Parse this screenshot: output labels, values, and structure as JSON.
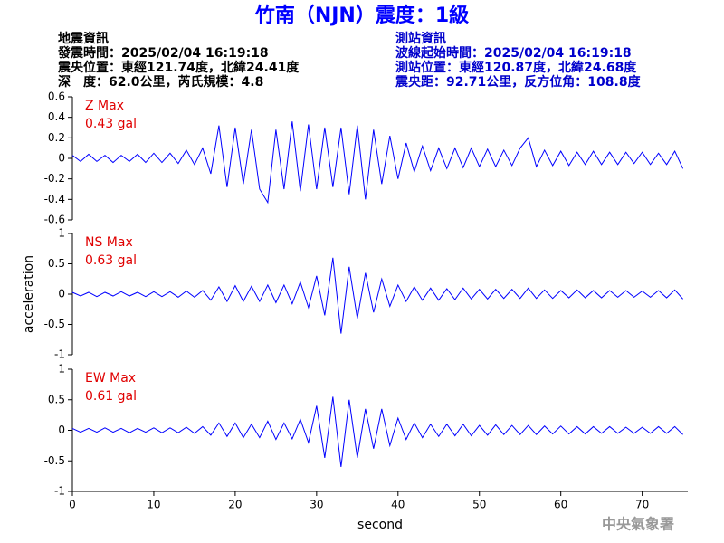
{
  "header": {
    "title": "竹南（NJN）震度：1級",
    "left": [
      "地震資訊",
      "發震時間：2025/02/04 16:19:18",
      "震央位置：東經121.74度，北緯24.41度",
      "深　度：62.0公里，芮氏規模：4.8"
    ],
    "right": [
      "測站資訊",
      "波線起始時間：2025/02/04 16:19:18",
      "測站位置：東經120.87度，北緯24.68度",
      "震央距：92.71公里，反方位角：108.8度"
    ]
  },
  "footer": "中央氣象署",
  "chart_data": [
    {
      "type": "line",
      "label": "Z Max",
      "annotation": "0.43 gal",
      "x": [
        0,
        1,
        2,
        3,
        4,
        5,
        6,
        7,
        8,
        9,
        10,
        11,
        12,
        13,
        14,
        15,
        16,
        17,
        18,
        19,
        20,
        21,
        22,
        23,
        24,
        25,
        26,
        27,
        28,
        29,
        30,
        31,
        32,
        33,
        34,
        35,
        36,
        37,
        38,
        39,
        40,
        41,
        42,
        43,
        44,
        45,
        46,
        47,
        48,
        49,
        50,
        51,
        52,
        53,
        54,
        55,
        56,
        57,
        58,
        59,
        60,
        61,
        62,
        63,
        64,
        65,
        66,
        67,
        68,
        69,
        70,
        71,
        72,
        73,
        74,
        75
      ],
      "series": [
        {
          "color": "#0000ff",
          "values": [
            0.03,
            -0.03,
            0.04,
            -0.03,
            0.03,
            -0.04,
            0.03,
            -0.03,
            0.04,
            -0.04,
            0.05,
            -0.04,
            0.05,
            -0.05,
            0.08,
            -0.06,
            0.1,
            -0.15,
            0.32,
            -0.28,
            0.3,
            -0.25,
            0.28,
            -0.3,
            -0.43,
            0.28,
            -0.3,
            0.36,
            -0.32,
            0.33,
            -0.3,
            0.3,
            -0.28,
            0.3,
            -0.35,
            0.32,
            -0.4,
            0.28,
            -0.25,
            0.22,
            -0.2,
            0.15,
            -0.13,
            0.12,
            -0.12,
            0.1,
            -0.1,
            0.1,
            -0.09,
            0.1,
            -0.08,
            0.09,
            -0.08,
            0.08,
            -0.07,
            0.1,
            0.2,
            -0.08,
            0.08,
            -0.07,
            0.07,
            -0.07,
            0.06,
            -0.06,
            0.07,
            -0.06,
            0.06,
            -0.06,
            0.06,
            -0.05,
            0.06,
            -0.06,
            0.05,
            -0.06,
            0.07,
            -0.1
          ]
        }
      ],
      "xlim": [
        0,
        75.6
      ],
      "ylim": [
        -0.6,
        0.6
      ],
      "yticks": [
        -0.6,
        -0.4,
        -0.2,
        0,
        0.2,
        0.4,
        0.6
      ]
    },
    {
      "type": "line",
      "label": "NS Max",
      "annotation": "0.63 gal",
      "ylabel": "acceleration",
      "x": [
        0,
        1,
        2,
        3,
        4,
        5,
        6,
        7,
        8,
        9,
        10,
        11,
        12,
        13,
        14,
        15,
        16,
        17,
        18,
        19,
        20,
        21,
        22,
        23,
        24,
        25,
        26,
        27,
        28,
        29,
        30,
        31,
        32,
        33,
        34,
        35,
        36,
        37,
        38,
        39,
        40,
        41,
        42,
        43,
        44,
        45,
        46,
        47,
        48,
        49,
        50,
        51,
        52,
        53,
        54,
        55,
        56,
        57,
        58,
        59,
        60,
        61,
        62,
        63,
        64,
        65,
        66,
        67,
        68,
        69,
        70,
        71,
        72,
        73,
        74,
        75
      ],
      "series": [
        {
          "color": "#0000ff",
          "values": [
            0.03,
            -0.03,
            0.03,
            -0.04,
            0.03,
            -0.03,
            0.04,
            -0.03,
            0.03,
            -0.04,
            0.04,
            -0.04,
            0.04,
            -0.05,
            0.05,
            -0.05,
            0.06,
            -0.1,
            0.12,
            -0.12,
            0.14,
            -0.12,
            0.13,
            -0.12,
            0.15,
            -0.14,
            0.15,
            -0.16,
            0.2,
            -0.22,
            0.3,
            -0.35,
            0.6,
            -0.65,
            0.45,
            -0.4,
            0.35,
            -0.3,
            0.25,
            -0.2,
            0.15,
            -0.12,
            0.12,
            -0.1,
            0.1,
            -0.1,
            0.09,
            -0.09,
            0.1,
            -0.08,
            0.08,
            -0.08,
            0.08,
            -0.07,
            0.08,
            -0.07,
            0.1,
            -0.07,
            0.07,
            -0.07,
            0.06,
            -0.06,
            0.07,
            -0.06,
            0.06,
            -0.06,
            0.06,
            -0.05,
            0.06,
            -0.05,
            0.05,
            -0.05,
            0.06,
            -0.06,
            0.07,
            -0.08
          ]
        }
      ],
      "xlim": [
        0,
        75.6
      ],
      "ylim": [
        -1,
        1
      ],
      "yticks": [
        -1,
        -0.5,
        0,
        0.5,
        1
      ]
    },
    {
      "type": "line",
      "label": "EW Max",
      "annotation": "0.61 gal",
      "xlabel": "second",
      "x": [
        0,
        1,
        2,
        3,
        4,
        5,
        6,
        7,
        8,
        9,
        10,
        11,
        12,
        13,
        14,
        15,
        16,
        17,
        18,
        19,
        20,
        21,
        22,
        23,
        24,
        25,
        26,
        27,
        28,
        29,
        30,
        31,
        32,
        33,
        34,
        35,
        36,
        37,
        38,
        39,
        40,
        41,
        42,
        43,
        44,
        45,
        46,
        47,
        48,
        49,
        50,
        51,
        52,
        53,
        54,
        55,
        56,
        57,
        58,
        59,
        60,
        61,
        62,
        63,
        64,
        65,
        66,
        67,
        68,
        69,
        70,
        71,
        72,
        73,
        74,
        75
      ],
      "series": [
        {
          "color": "#0000ff",
          "values": [
            0.03,
            -0.03,
            0.03,
            -0.03,
            0.04,
            -0.03,
            0.03,
            -0.04,
            0.03,
            -0.03,
            0.04,
            -0.04,
            0.04,
            -0.04,
            0.05,
            -0.05,
            0.06,
            -0.08,
            0.12,
            -0.1,
            0.12,
            -0.12,
            0.1,
            -0.12,
            0.15,
            -0.15,
            0.12,
            -0.14,
            0.18,
            -0.2,
            0.4,
            -0.45,
            0.55,
            -0.6,
            0.5,
            -0.45,
            0.35,
            -0.3,
            0.35,
            -0.25,
            0.2,
            -0.15,
            0.12,
            -0.12,
            0.1,
            -0.1,
            0.1,
            -0.09,
            0.1,
            -0.09,
            0.08,
            -0.08,
            0.09,
            -0.07,
            0.08,
            -0.07,
            0.08,
            -0.07,
            0.07,
            -0.06,
            0.07,
            -0.06,
            0.06,
            -0.06,
            0.06,
            -0.05,
            0.06,
            -0.05,
            0.05,
            -0.05,
            0.05,
            -0.05,
            0.06,
            -0.05,
            0.06,
            -0.07
          ]
        }
      ],
      "xlim": [
        0,
        75.6
      ],
      "ylim": [
        -1,
        1
      ],
      "yticks": [
        -1,
        -0.5,
        0,
        0.5,
        1
      ],
      "xticks": [
        0,
        10,
        20,
        30,
        40,
        50,
        60,
        70
      ]
    }
  ]
}
